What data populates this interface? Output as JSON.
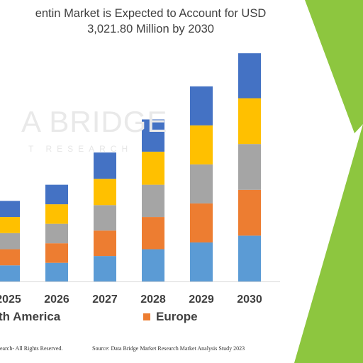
{
  "title": {
    "line1": "entin Market is Expected to Account for USD",
    "line2": "3,021.80 Million by 2030"
  },
  "watermark": {
    "line1": "A BRIDGE",
    "line2": "T RESEARCH"
  },
  "legend": [
    {
      "label": "th America",
      "color": "#5b9bd5"
    },
    {
      "label": "Europe",
      "color": "#ed7d31"
    }
  ],
  "footer": {
    "left": "earch- All Rights Reserved.",
    "right": "Source: Data Bridge Market Research Market Analysis Study 2023"
  },
  "colors": {
    "segments": [
      "#5b9bd5",
      "#ed7d31",
      "#a5a5a5",
      "#ffc000",
      "#4472c4"
    ],
    "green_decoration": "#8dc63f",
    "axis": "#d9d9d9"
  },
  "chart_data": {
    "type": "bar",
    "stacked": true,
    "categories": [
      "2025",
      "2026",
      "2027",
      "2028",
      "2029",
      "2030"
    ],
    "series": [
      {
        "values": [
          19,
          22,
          30,
          38,
          46,
          54
        ]
      },
      {
        "values": [
          19,
          23,
          30,
          38,
          46,
          54
        ]
      },
      {
        "values": [
          19,
          23,
          30,
          38,
          46,
          54
        ]
      },
      {
        "values": [
          19,
          23,
          31,
          39,
          46,
          54
        ]
      },
      {
        "values": [
          19,
          23,
          31,
          38,
          46,
          53
        ]
      }
    ],
    "ylim": [
      0,
      290
    ],
    "grid": false
  }
}
